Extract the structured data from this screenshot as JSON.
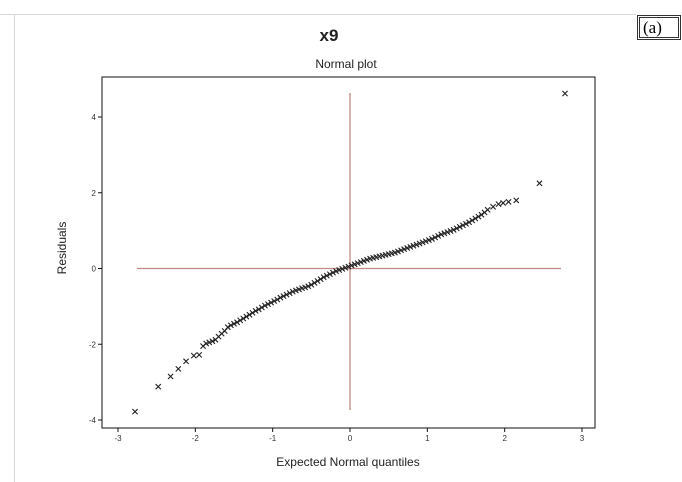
{
  "panel_label": "(a)",
  "chart_data": {
    "type": "scatter",
    "title": "x9",
    "subtitle": "Normal plot",
    "xlabel": "Expected Normal quantiles",
    "ylabel": "Residuals",
    "xlim": [
      -3,
      3
    ],
    "ylim": [
      -4,
      5
    ],
    "xticks": [
      "-3",
      "-2",
      "-1",
      "0",
      "1",
      "2",
      "3"
    ],
    "yticks": [
      "-4",
      "-2",
      "0",
      "2",
      "4"
    ],
    "reference_lines": {
      "x": 0,
      "y": 0,
      "color": "#c08a84"
    },
    "marker": "x",
    "marker_color": "#222222",
    "grid": false,
    "legend": "none",
    "series": [
      {
        "points": [
          [
            -2.78,
            -3.78
          ],
          [
            -2.48,
            -3.12
          ],
          [
            -2.32,
            -2.85
          ],
          [
            -2.22,
            -2.65
          ],
          [
            -2.12,
            -2.45
          ],
          [
            -2.02,
            -2.3
          ],
          [
            -1.95,
            -2.28
          ],
          [
            -1.9,
            -2.05
          ],
          [
            -1.86,
            -1.98
          ],
          [
            -1.82,
            -1.95
          ],
          [
            -1.78,
            -1.92
          ],
          [
            -1.74,
            -1.88
          ],
          [
            -1.7,
            -1.8
          ],
          [
            -1.66,
            -1.72
          ],
          [
            -1.62,
            -1.65
          ],
          [
            -1.58,
            -1.55
          ],
          [
            -1.54,
            -1.5
          ],
          [
            -1.5,
            -1.46
          ],
          [
            -1.46,
            -1.42
          ],
          [
            -1.42,
            -1.37
          ],
          [
            -1.38,
            -1.32
          ],
          [
            -1.34,
            -1.27
          ],
          [
            -1.3,
            -1.22
          ],
          [
            -1.26,
            -1.17
          ],
          [
            -1.22,
            -1.12
          ],
          [
            -1.18,
            -1.08
          ],
          [
            -1.14,
            -1.03
          ],
          [
            -1.1,
            -0.98
          ],
          [
            -1.06,
            -0.94
          ],
          [
            -1.02,
            -0.9
          ],
          [
            -0.98,
            -0.86
          ],
          [
            -0.94,
            -0.82
          ],
          [
            -0.9,
            -0.77
          ],
          [
            -0.86,
            -0.73
          ],
          [
            -0.82,
            -0.69
          ],
          [
            -0.78,
            -0.65
          ],
          [
            -0.74,
            -0.61
          ],
          [
            -0.7,
            -0.58
          ],
          [
            -0.66,
            -0.55
          ],
          [
            -0.62,
            -0.52
          ],
          [
            -0.58,
            -0.5
          ],
          [
            -0.54,
            -0.47
          ],
          [
            -0.5,
            -0.43
          ],
          [
            -0.46,
            -0.38
          ],
          [
            -0.42,
            -0.33
          ],
          [
            -0.38,
            -0.28
          ],
          [
            -0.34,
            -0.23
          ],
          [
            -0.3,
            -0.19
          ],
          [
            -0.26,
            -0.15
          ],
          [
            -0.22,
            -0.11
          ],
          [
            -0.18,
            -0.07
          ],
          [
            -0.14,
            -0.04
          ],
          [
            -0.1,
            -0.01
          ],
          [
            -0.06,
            0.02
          ],
          [
            -0.02,
            0.05
          ],
          [
            0.02,
            0.08
          ],
          [
            0.06,
            0.11
          ],
          [
            0.1,
            0.14
          ],
          [
            0.14,
            0.17
          ],
          [
            0.18,
            0.2
          ],
          [
            0.22,
            0.23
          ],
          [
            0.26,
            0.26
          ],
          [
            0.3,
            0.28
          ],
          [
            0.34,
            0.3
          ],
          [
            0.38,
            0.32
          ],
          [
            0.42,
            0.34
          ],
          [
            0.46,
            0.36
          ],
          [
            0.5,
            0.38
          ],
          [
            0.54,
            0.4
          ],
          [
            0.58,
            0.42
          ],
          [
            0.62,
            0.45
          ],
          [
            0.66,
            0.48
          ],
          [
            0.7,
            0.51
          ],
          [
            0.74,
            0.54
          ],
          [
            0.78,
            0.57
          ],
          [
            0.82,
            0.6
          ],
          [
            0.86,
            0.63
          ],
          [
            0.9,
            0.66
          ],
          [
            0.94,
            0.69
          ],
          [
            0.98,
            0.72
          ],
          [
            1.02,
            0.75
          ],
          [
            1.06,
            0.78
          ],
          [
            1.1,
            0.82
          ],
          [
            1.14,
            0.86
          ],
          [
            1.18,
            0.9
          ],
          [
            1.22,
            0.93
          ],
          [
            1.26,
            0.96
          ],
          [
            1.3,
            0.99
          ],
          [
            1.34,
            1.02
          ],
          [
            1.38,
            1.06
          ],
          [
            1.42,
            1.1
          ],
          [
            1.46,
            1.14
          ],
          [
            1.5,
            1.18
          ],
          [
            1.54,
            1.22
          ],
          [
            1.58,
            1.27
          ],
          [
            1.62,
            1.32
          ],
          [
            1.66,
            1.37
          ],
          [
            1.7,
            1.42
          ],
          [
            1.74,
            1.48
          ],
          [
            1.78,
            1.55
          ],
          [
            1.85,
            1.63
          ],
          [
            1.92,
            1.7
          ],
          [
            1.98,
            1.73
          ],
          [
            2.05,
            1.76
          ],
          [
            2.15,
            1.8
          ],
          [
            2.45,
            2.25
          ],
          [
            2.78,
            4.62
          ]
        ]
      }
    ]
  }
}
